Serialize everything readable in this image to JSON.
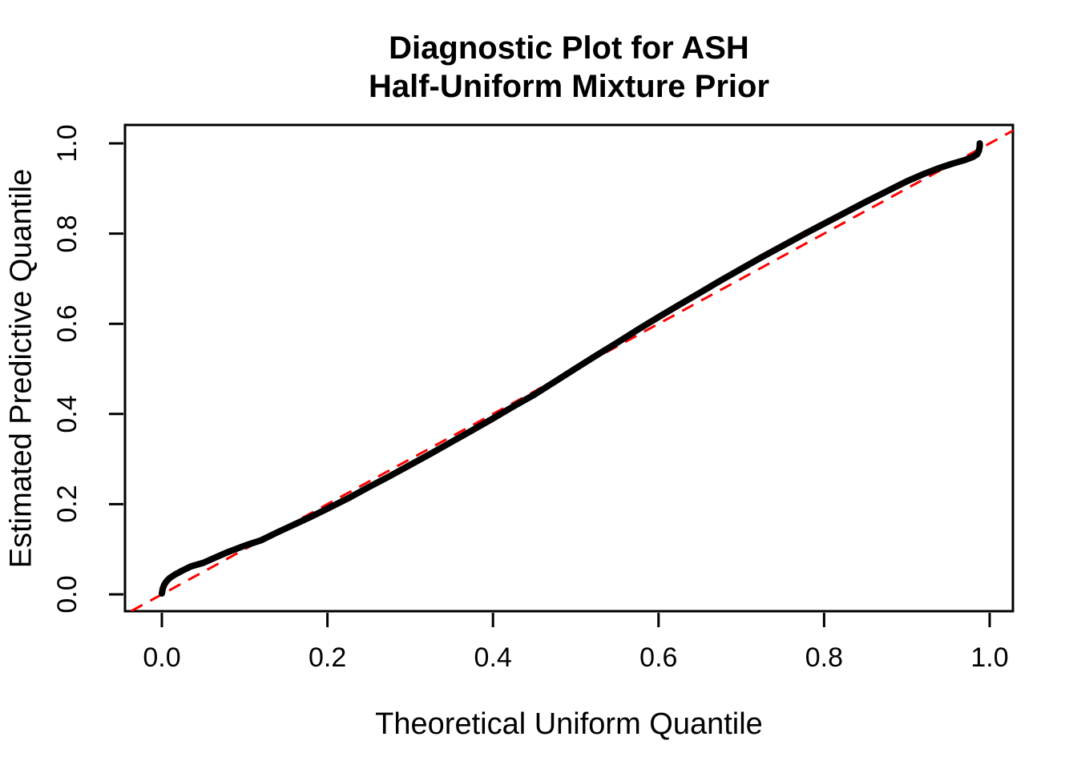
{
  "chart_data": {
    "type": "scatter",
    "description": "QQ diagnostic plot: dense black points forming a thick curve of estimated predictive quantiles versus theoretical uniform quantiles, with a red dashed y=x reference line",
    "title_line1": "Diagnostic Plot for ASH",
    "title_line2": "Half-Uniform Mixture Prior",
    "xlabel": "Theoretical Uniform Quantile",
    "ylabel": "Estimated Predictive Quantile",
    "xlim": [
      -0.04,
      1.04
    ],
    "ylim": [
      -0.04,
      1.04
    ],
    "grid": false,
    "legend": null,
    "x_tick_values": [
      0.0,
      0.2,
      0.4,
      0.6,
      0.8,
      1.0
    ],
    "x_tick_labels": [
      "0.0",
      "0.2",
      "0.4",
      "0.6",
      "0.8",
      "1.0"
    ],
    "y_tick_values": [
      0.0,
      0.2,
      0.4,
      0.6,
      0.8,
      1.0
    ],
    "y_tick_labels": [
      "0.0",
      "0.2",
      "0.4",
      "0.6",
      "0.8",
      "1.0"
    ],
    "colors": {
      "points": "#000000",
      "reference_line": "#FF0000",
      "background": "#FFFFFF",
      "box": "#000000"
    },
    "series": [
      {
        "name": "qq-points",
        "style": "dense-points-thick-curve",
        "color": "#000000",
        "points": [
          [
            0.0,
            0.002
          ],
          [
            0.001,
            0.012
          ],
          [
            0.003,
            0.022
          ],
          [
            0.006,
            0.03
          ],
          [
            0.01,
            0.037
          ],
          [
            0.016,
            0.044
          ],
          [
            0.025,
            0.053
          ],
          [
            0.035,
            0.062
          ],
          [
            0.05,
            0.07
          ],
          [
            0.065,
            0.082
          ],
          [
            0.08,
            0.094
          ],
          [
            0.1,
            0.108
          ],
          [
            0.12,
            0.12
          ],
          [
            0.14,
            0.138
          ],
          [
            0.16,
            0.155
          ],
          [
            0.18,
            0.172
          ],
          [
            0.2,
            0.19
          ],
          [
            0.225,
            0.213
          ],
          [
            0.25,
            0.238
          ],
          [
            0.275,
            0.262
          ],
          [
            0.3,
            0.287
          ],
          [
            0.325,
            0.312
          ],
          [
            0.35,
            0.338
          ],
          [
            0.375,
            0.364
          ],
          [
            0.4,
            0.39
          ],
          [
            0.425,
            0.417
          ],
          [
            0.45,
            0.443
          ],
          [
            0.475,
            0.472
          ],
          [
            0.5,
            0.501
          ],
          [
            0.525,
            0.53
          ],
          [
            0.55,
            0.558
          ],
          [
            0.575,
            0.587
          ],
          [
            0.6,
            0.615
          ],
          [
            0.625,
            0.642
          ],
          [
            0.65,
            0.669
          ],
          [
            0.675,
            0.696
          ],
          [
            0.7,
            0.722
          ],
          [
            0.725,
            0.748
          ],
          [
            0.75,
            0.773
          ],
          [
            0.775,
            0.798
          ],
          [
            0.8,
            0.822
          ],
          [
            0.825,
            0.846
          ],
          [
            0.85,
            0.87
          ],
          [
            0.875,
            0.893
          ],
          [
            0.9,
            0.916
          ],
          [
            0.92,
            0.932
          ],
          [
            0.94,
            0.946
          ],
          [
            0.955,
            0.955
          ],
          [
            0.97,
            0.963
          ],
          [
            0.98,
            0.97
          ],
          [
            0.985,
            0.976
          ],
          [
            0.987,
            0.984
          ],
          [
            0.988,
            0.993
          ],
          [
            0.988,
            1.0
          ]
        ]
      },
      {
        "name": "identity-reference",
        "style": "dashed-line",
        "color": "#FF0000",
        "points": [
          [
            -0.06,
            -0.06
          ],
          [
            1.06,
            1.06
          ]
        ]
      }
    ]
  }
}
